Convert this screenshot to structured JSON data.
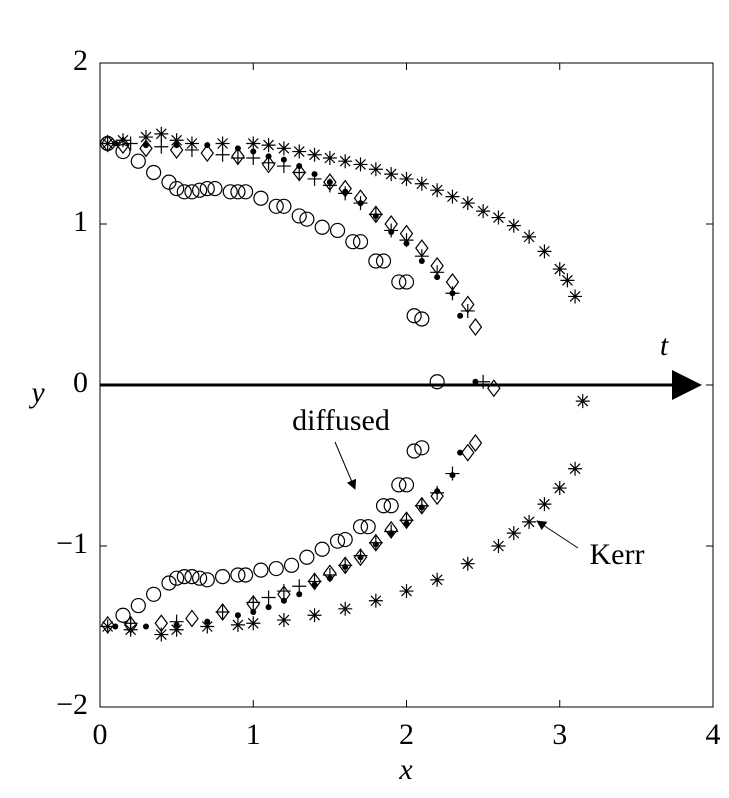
{
  "chart_data": {
    "type": "scatter",
    "x_label": "x",
    "y_label": "y",
    "annotations": [
      "diffused",
      "Kerr",
      "t"
    ],
    "xlim": [
      0,
      4
    ],
    "ylim": [
      -2,
      2
    ],
    "xticks": [
      0,
      1,
      2,
      3,
      4
    ],
    "yticks": [
      {
        "value": -2,
        "label": "−2"
      },
      {
        "value": -1,
        "label": "−1"
      },
      0,
      1,
      2
    ],
    "series": [
      {
        "marker": "circle",
        "color": "#000000",
        "x": [
          0.05,
          0.15,
          0.25,
          0.35,
          0.45,
          0.5,
          0.55,
          0.6,
          0.65,
          0.7,
          0.75,
          0.85,
          0.9,
          0.95,
          1.05,
          1.15,
          1.2,
          1.3,
          1.35,
          1.45,
          1.55,
          1.65,
          1.7,
          1.8,
          1.85,
          1.95,
          2.0,
          2.05,
          2.1,
          2.2,
          0.15,
          0.25,
          0.35,
          0.45,
          0.5,
          0.55,
          0.6,
          0.65,
          0.7,
          0.8,
          0.9,
          0.95,
          1.05,
          1.15,
          1.25,
          1.35,
          1.45,
          1.55,
          1.6,
          1.7,
          1.75,
          1.85,
          1.9,
          1.95,
          2.0,
          2.05,
          2.1
        ],
        "y": [
          1.5,
          1.45,
          1.39,
          1.32,
          1.26,
          1.22,
          1.2,
          1.2,
          1.21,
          1.22,
          1.22,
          1.2,
          1.2,
          1.2,
          1.16,
          1.11,
          1.11,
          1.05,
          1.03,
          0.98,
          0.96,
          0.89,
          0.89,
          0.77,
          0.77,
          0.64,
          0.64,
          0.43,
          0.41,
          0.02,
          -1.43,
          -1.37,
          -1.3,
          -1.23,
          -1.2,
          -1.19,
          -1.19,
          -1.2,
          -1.21,
          -1.19,
          -1.18,
          -1.18,
          -1.15,
          -1.14,
          -1.12,
          -1.07,
          -1.02,
          -0.97,
          -0.96,
          -0.88,
          -0.88,
          -0.75,
          -0.75,
          -0.62,
          -0.62,
          -0.41,
          -0.39
        ]
      },
      {
        "marker": "dot",
        "color": "#000000",
        "x": [
          0.1,
          0.3,
          0.5,
          0.7,
          0.9,
          1.0,
          1.1,
          1.2,
          1.3,
          1.4,
          1.5,
          1.6,
          1.7,
          1.8,
          1.9,
          2.0,
          2.1,
          2.2,
          2.3,
          2.35,
          2.45,
          0.1,
          0.3,
          0.5,
          0.7,
          0.9,
          1.0,
          1.1,
          1.2,
          1.3,
          1.4,
          1.5,
          1.6,
          1.7,
          1.8,
          1.9,
          2.0,
          2.1,
          2.2,
          2.3,
          2.35
        ],
        "y": [
          1.5,
          1.49,
          1.49,
          1.49,
          1.47,
          1.45,
          1.42,
          1.4,
          1.36,
          1.31,
          1.26,
          1.2,
          1.13,
          1.05,
          0.95,
          0.88,
          0.77,
          0.67,
          0.57,
          0.43,
          0.02,
          -1.5,
          -1.5,
          -1.49,
          -1.47,
          -1.43,
          -1.41,
          -1.38,
          -1.34,
          -1.3,
          -1.24,
          -1.2,
          -1.13,
          -1.07,
          -0.99,
          -0.92,
          -0.86,
          -0.76,
          -0.66,
          -0.56,
          -0.42
        ]
      },
      {
        "marker": "plus",
        "color": "#000000",
        "x": [
          0.2,
          0.4,
          0.6,
          0.8,
          0.9,
          1.0,
          1.1,
          1.2,
          1.3,
          1.4,
          1.5,
          1.6,
          1.7,
          1.8,
          1.9,
          2.0,
          2.1,
          2.2,
          2.3,
          2.4,
          2.5,
          0.2,
          0.5,
          0.8,
          1.0,
          1.1,
          1.2,
          1.3,
          1.4,
          1.5,
          1.6,
          1.7,
          1.8,
          1.9,
          2.0,
          2.1,
          2.2,
          2.3
        ],
        "y": [
          1.5,
          1.48,
          1.46,
          1.43,
          1.41,
          1.41,
          1.38,
          1.36,
          1.32,
          1.28,
          1.24,
          1.19,
          1.13,
          1.06,
          0.96,
          0.9,
          0.8,
          0.7,
          0.57,
          0.46,
          0.02,
          -1.48,
          -1.47,
          -1.41,
          -1.35,
          -1.32,
          -1.28,
          -1.25,
          -1.22,
          -1.18,
          -1.12,
          -1.06,
          -0.98,
          -0.91,
          -0.84,
          -0.75,
          -0.67,
          -0.55
        ]
      },
      {
        "marker": "diamond",
        "color": "#000000",
        "x": [
          0.05,
          0.15,
          0.3,
          0.5,
          0.7,
          0.9,
          1.1,
          1.3,
          1.5,
          1.6,
          1.7,
          1.8,
          1.9,
          2.0,
          2.1,
          2.2,
          2.3,
          2.4,
          2.45,
          2.57,
          0.05,
          0.2,
          0.4,
          0.6,
          0.8,
          1.0,
          1.2,
          1.4,
          1.5,
          1.6,
          1.7,
          1.8,
          1.9,
          2.0,
          2.1,
          2.2,
          2.4,
          2.45
        ],
        "y": [
          1.5,
          1.49,
          1.47,
          1.46,
          1.44,
          1.42,
          1.37,
          1.32,
          1.26,
          1.22,
          1.16,
          1.06,
          1.0,
          0.94,
          0.85,
          0.74,
          0.64,
          0.5,
          0.36,
          -0.02,
          -1.49,
          -1.49,
          -1.48,
          -1.45,
          -1.41,
          -1.36,
          -1.3,
          -1.22,
          -1.17,
          -1.12,
          -1.07,
          -0.98,
          -0.9,
          -0.84,
          -0.75,
          -0.69,
          -0.42,
          -0.36
        ]
      },
      {
        "marker": "asterisk",
        "color": "#000000",
        "x": [
          0.05,
          0.15,
          0.3,
          0.4,
          0.5,
          0.6,
          0.8,
          1.0,
          1.1,
          1.2,
          1.3,
          1.4,
          1.5,
          1.6,
          1.7,
          1.8,
          1.9,
          2.0,
          2.1,
          2.2,
          2.3,
          2.4,
          2.5,
          2.6,
          2.7,
          2.8,
          2.9,
          3.0,
          3.05,
          3.1,
          3.15,
          0.05,
          0.2,
          0.4,
          0.5,
          0.7,
          0.9,
          1.0,
          1.2,
          1.4,
          1.6,
          1.8,
          2.0,
          2.2,
          2.4,
          2.6,
          2.7,
          2.8,
          2.9,
          3.0,
          3.1
        ],
        "y": [
          1.5,
          1.52,
          1.54,
          1.56,
          1.52,
          1.5,
          1.5,
          1.5,
          1.49,
          1.47,
          1.45,
          1.43,
          1.41,
          1.39,
          1.37,
          1.34,
          1.31,
          1.28,
          1.25,
          1.21,
          1.17,
          1.13,
          1.08,
          1.04,
          0.99,
          0.92,
          0.83,
          0.72,
          0.65,
          0.55,
          -0.1,
          -1.5,
          -1.52,
          -1.55,
          -1.52,
          -1.5,
          -1.49,
          -1.48,
          -1.46,
          -1.43,
          -1.39,
          -1.34,
          -1.28,
          -1.21,
          -1.11,
          -1.0,
          -0.92,
          -0.85,
          -0.74,
          -0.64,
          -0.52
        ]
      }
    ]
  }
}
